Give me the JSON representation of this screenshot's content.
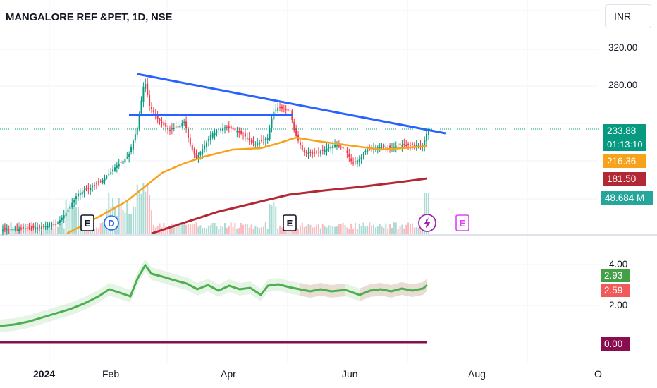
{
  "header": {
    "symbol_title": "MANGALORE REF &PET, 1D, NSE",
    "currency": "INR"
  },
  "price_axis": {
    "ticks": [
      "320.00",
      "280.00"
    ]
  },
  "price_tags": {
    "last_price": "233.88",
    "countdown": "01:13:10",
    "ma_fast": "216.36",
    "ma_slow": "181.50",
    "volume": "48.684 M"
  },
  "indicator_axis": {
    "ticks": [
      "4.00",
      "2.00"
    ]
  },
  "indicator_tags": {
    "upper": "2.93",
    "lower": "2.59",
    "zero": "0.00"
  },
  "time_axis": {
    "labels": [
      "2024",
      "Feb",
      "Apr",
      "Jun",
      "Aug",
      "O"
    ]
  },
  "event_markers": {
    "earnings": "E",
    "dividend": "D"
  },
  "colors": {
    "up": "#089981",
    "down": "#f23645",
    "trendline": "#2962ff",
    "ma_fast": "#f7a21b",
    "ma_slow": "#b22833",
    "indicator_line": "#4caf50",
    "indicator_zero": "#880e4f",
    "earnings_future": "#e040fb",
    "split_icon": "#9c27b0"
  },
  "chart_data": {
    "type": "candlestick",
    "title": "MANGALORE REF &PET, 1D, NSE",
    "x_labels": [
      "2024",
      "Feb",
      "Apr",
      "Jun",
      "Aug",
      "O"
    ],
    "y_ticks": [
      320,
      280
    ],
    "last_close": 233.88,
    "ma_fast_last": 216.36,
    "ma_slow_last": 181.5,
    "volume_last": "48.684 M",
    "indicator": {
      "upper": 2.93,
      "lower": 2.59,
      "zero": 0.0,
      "ticks": [
        4.0,
        2.0
      ]
    }
  }
}
